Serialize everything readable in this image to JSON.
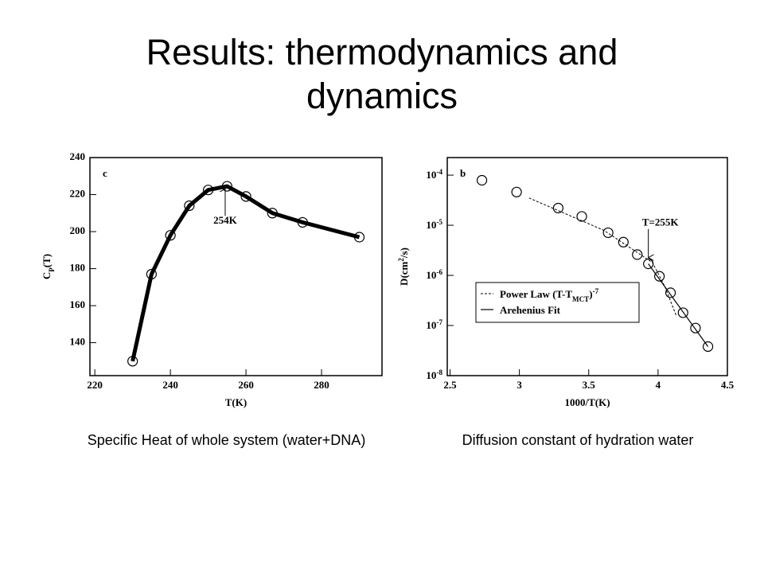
{
  "title": "Results: thermodynamics and dynamics",
  "chart_data": [
    {
      "type": "line",
      "panel_label": "c",
      "caption": "Specific Heat of whole system (water+DNA)",
      "xlabel": [
        {
          "text": "T(K)"
        }
      ],
      "ylabel": [
        {
          "text": "C"
        },
        {
          "text": "P",
          "shift": "sub"
        },
        {
          "text": "(T)"
        }
      ],
      "series": [
        {
          "color": "#000000",
          "marker": "circle",
          "line": "thick",
          "x": [
            230,
            235,
            240,
            245,
            250,
            255,
            260,
            267,
            275,
            290
          ],
          "values": [
            130,
            177,
            198,
            214,
            222.5,
            224.5,
            219,
            210,
            205,
            197
          ]
        }
      ],
      "xlim": [
        218.7,
        296
      ],
      "xticks": [
        220,
        240,
        260,
        280
      ],
      "ylim": [
        122.2,
        240
      ],
      "yticks": [
        140,
        160,
        180,
        200,
        220,
        240
      ],
      "annotations": [
        {
          "text": "254K",
          "x": 254.5,
          "y": 224,
          "placement": "below"
        }
      ]
    },
    {
      "type": "scatter",
      "panel_label": "b",
      "caption": "Diffusion constant of hydration water",
      "xlabel": [
        {
          "text": "1000/T(K)"
        }
      ],
      "ylabel": [
        {
          "text": "D(cm"
        },
        {
          "text": "2",
          "shift": "super"
        },
        {
          "text": "/s)"
        }
      ],
      "log_y": true,
      "legend": "center-left",
      "series": [
        {
          "color": "#000000",
          "marker": "circle",
          "x": [
            2.73,
            2.98,
            3.28,
            3.45,
            3.64,
            3.75,
            3.85,
            3.93,
            4.01,
            4.09,
            4.18,
            4.27,
            4.36
          ],
          "values": [
            7.9e-05,
            4.6e-05,
            2.2e-05,
            1.5e-05,
            7.1e-06,
            4.6e-06,
            2.6e-06,
            1.7e-06,
            9.6e-07,
            4.5e-07,
            1.8e-07,
            8.9e-08,
            3.8e-08
          ]
        },
        {
          "color": "#000000",
          "line": "dashed",
          "name": [
            {
              "text": "Power Law (T-T"
            },
            {
              "text": "MCT",
              "shift": "sub"
            },
            {
              "text": ")"
            },
            {
              "text": "-7",
              "shift": "super"
            }
          ],
          "x": [
            3.07,
            3.61,
            3.96,
            4.05,
            4.13
          ],
          "values": [
            3.5e-05,
            7.9e-06,
            1.8e-06,
            5.9e-07,
            1.6e-07
          ]
        },
        {
          "color": "#000000",
          "line": "thin",
          "name": [
            {
              "text": "Arehenius Fit"
            }
          ],
          "x": [
            3.93,
            4.36
          ],
          "values": [
            1.7e-06,
            3.8e-08
          ]
        }
      ],
      "xlim": [
        2.48,
        4.5
      ],
      "xticks": [
        2.5,
        3,
        3.5,
        4,
        4.5
      ],
      "ylim": [
        1e-08,
        0.000224
      ],
      "yticks": [
        {
          "value": 1e-08,
          "label": "10",
          "exponent": "-8"
        },
        {
          "value": 1e-07,
          "label": "10",
          "exponent": "-7"
        },
        {
          "value": 1e-06,
          "label": "10",
          "exponent": "-6"
        },
        {
          "value": 1e-05,
          "label": "10",
          "exponent": "-5"
        },
        {
          "value": 0.0001,
          "label": "10",
          "exponent": "-4"
        }
      ],
      "annotations": [
        {
          "text": "T=255K",
          "x": 3.93,
          "y": 2.1e-06,
          "placement": "above"
        }
      ]
    }
  ]
}
